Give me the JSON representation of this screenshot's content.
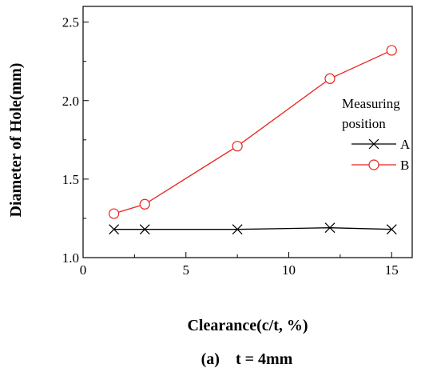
{
  "chart_data": {
    "type": "line",
    "xlabel": "Clearance(c/t, %)",
    "ylabel": "Diameter of Hole(mm)",
    "caption": "(a)    t = 4mm",
    "xlim": [
      0,
      16
    ],
    "ylim": [
      1.0,
      2.6
    ],
    "xticks": [
      0,
      5,
      10,
      15
    ],
    "yticks": [
      1.0,
      1.5,
      2.0,
      2.5
    ],
    "xtick_labels": [
      "0",
      "5",
      "10",
      "15"
    ],
    "ytick_labels": [
      "1.0",
      "1.5",
      "2.0",
      "2.5"
    ],
    "grid": false,
    "legend": {
      "title_line1": "Measuring",
      "title_line2": "position",
      "placement": "right"
    },
    "series": [
      {
        "name": "A",
        "marker": "x",
        "color": "#000000",
        "x": [
          1.5,
          3,
          7.5,
          12,
          15
        ],
        "y": [
          1.18,
          1.18,
          1.18,
          1.19,
          1.18
        ]
      },
      {
        "name": "B",
        "marker": "open-circle",
        "color": "#e8231d",
        "x": [
          1.5,
          3,
          7.5,
          12,
          15
        ],
        "y": [
          1.28,
          1.34,
          1.71,
          2.14,
          2.32
        ]
      }
    ]
  }
}
